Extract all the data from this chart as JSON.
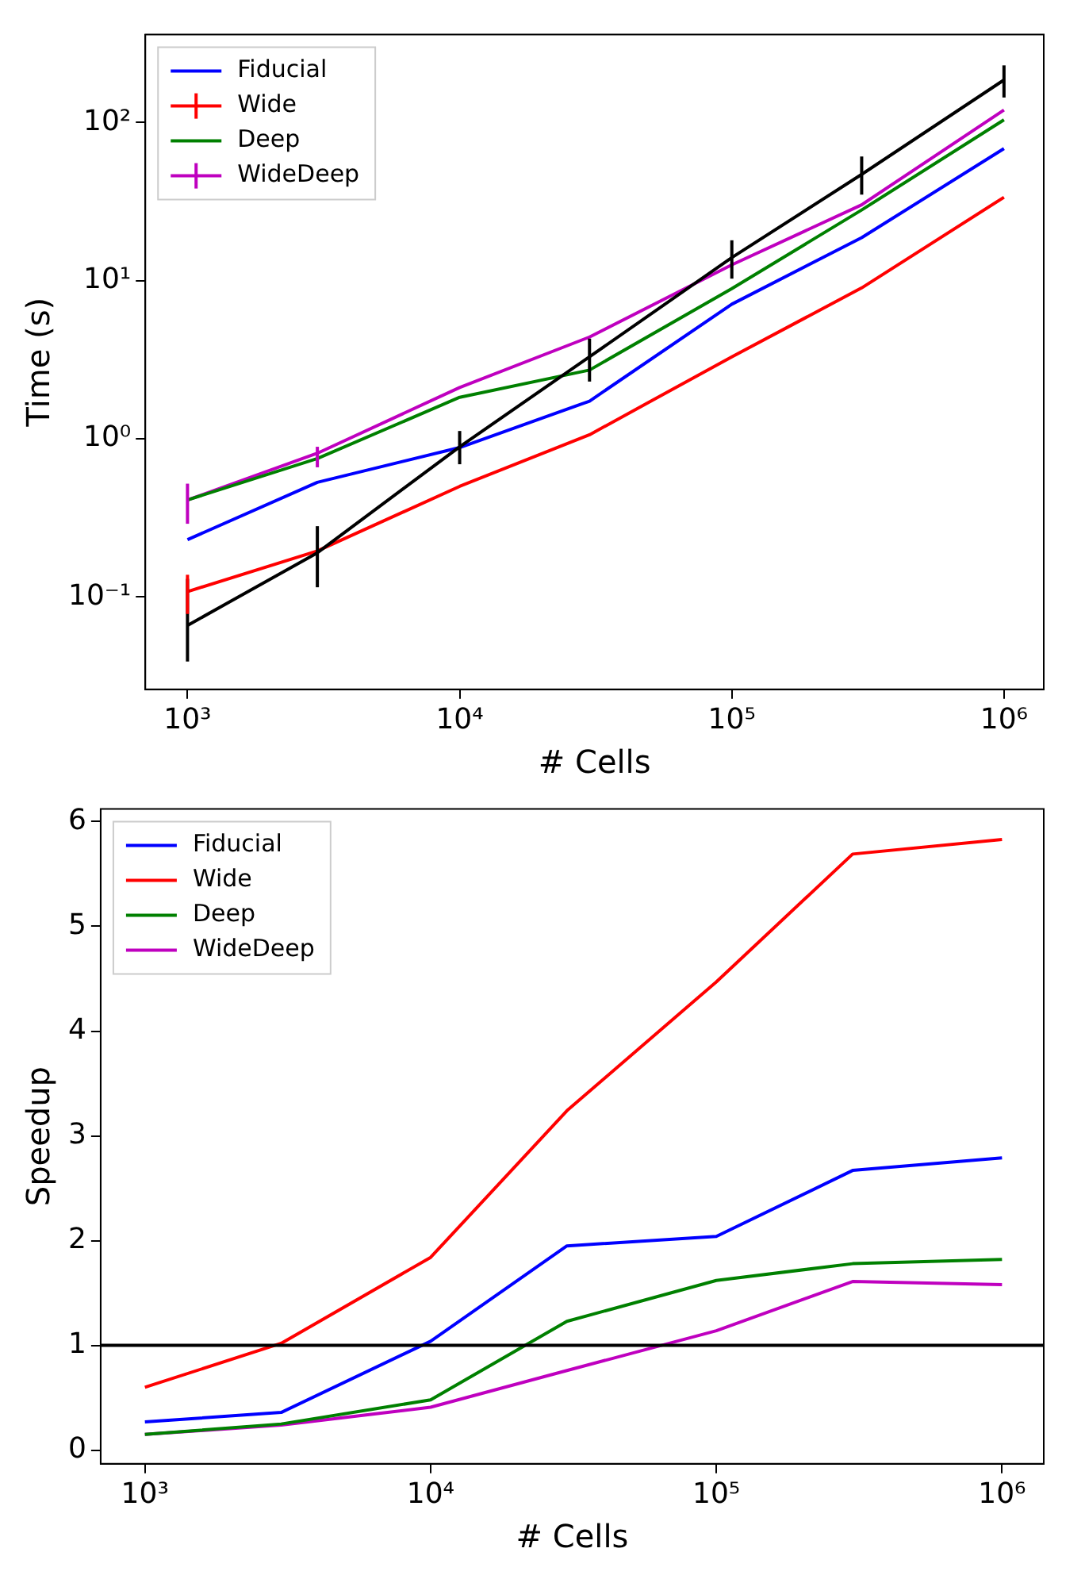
{
  "chart_data": [
    {
      "type": "line",
      "xlabel": "# Cells",
      "ylabel": "Time (s)",
      "log": "xy",
      "marker": "none",
      "legend": "top left",
      "x": [
        1000,
        3000,
        10000,
        30000,
        100000,
        300000,
        1000000
      ],
      "xlim": [
        700,
        1400000
      ],
      "ylim": [
        0.026,
        360
      ],
      "xticks": [
        {
          "value": 1000,
          "label": "10³"
        },
        {
          "value": 10000,
          "label": "10⁴"
        },
        {
          "value": 100000,
          "label": "10⁵"
        },
        {
          "value": 1000000,
          "label": "10⁶"
        }
      ],
      "yticks": [
        {
          "value": 0.1,
          "label": "10⁻¹"
        },
        {
          "value": 1,
          "label": "10⁰"
        },
        {
          "value": 10,
          "label": "10¹"
        },
        {
          "value": 100,
          "label": "10²"
        }
      ],
      "series": [
        {
          "color": "#000000",
          "values": [
            0.066,
            0.19,
            0.89,
            3.3,
            14,
            47,
            186
          ],
          "errors": [
            [
              0.039,
              0.13
            ],
            [
              0.115,
              0.28
            ],
            [
              0.69,
              1.12
            ],
            [
              2.3,
              4.3
            ],
            [
              10.3,
              18
            ],
            [
              35,
              61
            ],
            [
              144,
              230
            ]
          ]
        },
        {
          "name": "Fiducial",
          "color": "#0000ff",
          "values": [
            0.23,
            0.53,
            0.88,
            1.73,
            7.1,
            18.7,
            68.5
          ]
        },
        {
          "name": "Wide",
          "color": "#ff0000",
          "values": [
            0.108,
            0.195,
            0.5,
            1.06,
            3.3,
            9.0,
            33.7
          ],
          "errors": [
            [
              0.078,
              0.138
            ],
            null,
            null,
            null,
            null,
            null,
            null
          ]
        },
        {
          "name": "Deep",
          "color": "#008000",
          "values": [
            0.41,
            0.75,
            1.83,
            2.72,
            8.9,
            28,
            104
          ]
        },
        {
          "name": "WideDeep",
          "color": "#bf00bf",
          "values": [
            0.41,
            0.81,
            2.11,
            4.4,
            12.6,
            30.2,
            120
          ],
          "errors": [
            [
              0.29,
              0.52
            ],
            [
              0.66,
              0.89
            ],
            null,
            null,
            null,
            null,
            null
          ]
        }
      ]
    },
    {
      "type": "line",
      "xlabel": "# Cells",
      "ylabel": "Speedup",
      "log": "x",
      "marker": "none",
      "legend": "top left",
      "x": [
        1000,
        3000,
        10000,
        30000,
        100000,
        300000,
        1000000
      ],
      "xlim": [
        700,
        1400000
      ],
      "ylim": [
        -0.13,
        6.12
      ],
      "xticks": [
        {
          "value": 1000,
          "label": "10³"
        },
        {
          "value": 10000,
          "label": "10⁴"
        },
        {
          "value": 100000,
          "label": "10⁵"
        },
        {
          "value": 1000000,
          "label": "10⁶"
        }
      ],
      "yticks": [
        0,
        1,
        2,
        3,
        4,
        5,
        6
      ],
      "ref_lines": [
        {
          "axis": "y",
          "value": 1,
          "color": "#000000"
        }
      ],
      "series": [
        {
          "name": "Fiducial",
          "color": "#0000ff",
          "values": [
            0.27,
            0.36,
            1.04,
            1.95,
            2.04,
            2.67,
            2.79
          ]
        },
        {
          "name": "Wide",
          "color": "#ff0000",
          "values": [
            0.6,
            1.02,
            1.84,
            3.24,
            4.47,
            5.69,
            5.83
          ]
        },
        {
          "name": "Deep",
          "color": "#008000",
          "values": [
            0.15,
            0.25,
            0.48,
            1.23,
            1.62,
            1.78,
            1.82
          ]
        },
        {
          "name": "WideDeep",
          "color": "#bf00bf",
          "values": [
            0.15,
            0.24,
            0.41,
            0.76,
            1.14,
            1.61,
            1.58
          ]
        }
      ]
    }
  ]
}
